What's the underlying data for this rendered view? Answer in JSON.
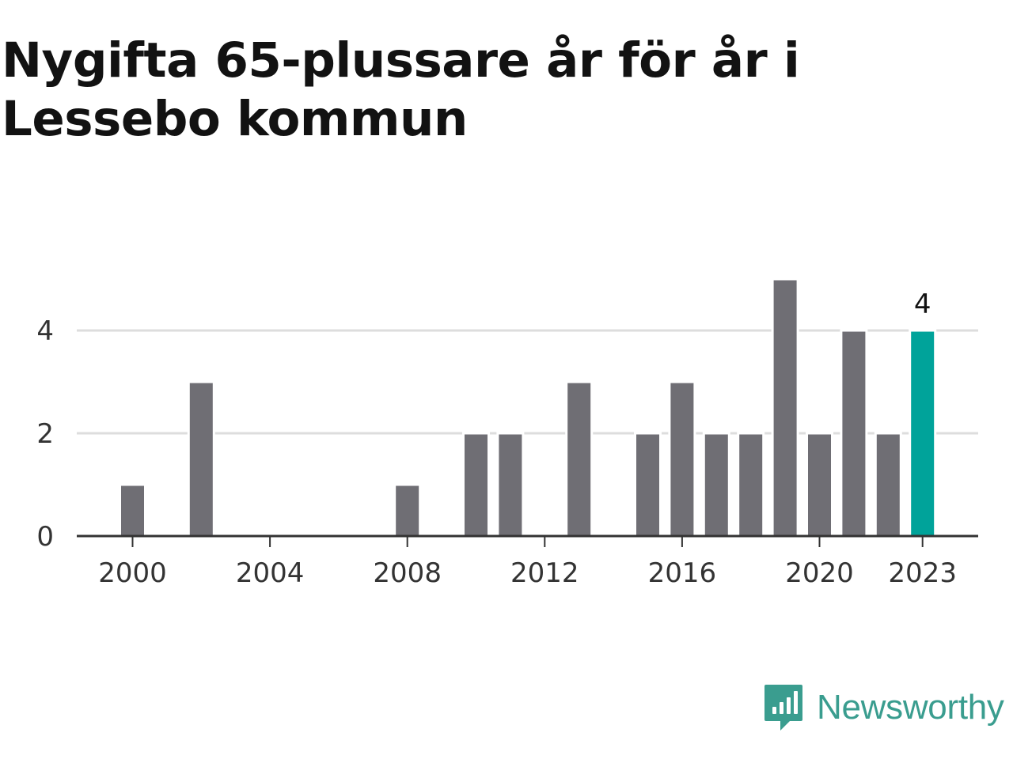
{
  "title": "Nygifta 65-plussare år för år i Lessebo kommun",
  "brand": {
    "name": "Newsworthy",
    "icon": "newsworthy-logo-icon",
    "color": "#3a9d8f"
  },
  "chart_data": {
    "type": "bar",
    "title": "Nygifta 65-plussare år för år i Lessebo kommun",
    "categories": [
      "2000",
      "2001",
      "2002",
      "2003",
      "2004",
      "2005",
      "2006",
      "2007",
      "2008",
      "2009",
      "2010",
      "2011",
      "2012",
      "2013",
      "2014",
      "2015",
      "2016",
      "2017",
      "2018",
      "2019",
      "2020",
      "2021",
      "2022",
      "2023"
    ],
    "values": [
      1,
      0,
      3,
      0,
      0,
      0,
      0,
      0,
      1,
      0,
      2,
      2,
      0,
      3,
      0,
      2,
      3,
      2,
      2,
      5,
      2,
      4,
      2,
      4
    ],
    "x_tick_labels": [
      "2000",
      "2004",
      "2008",
      "2012",
      "2016",
      "2020",
      "2023"
    ],
    "y_ticks": [
      0,
      2,
      4
    ],
    "ylim": [
      0,
      5
    ],
    "grid": true,
    "highlight": {
      "category": "2023",
      "label": "4",
      "color": "#00a39a"
    },
    "bar_color": "#6f6e74",
    "xlabel": "",
    "ylabel": ""
  }
}
